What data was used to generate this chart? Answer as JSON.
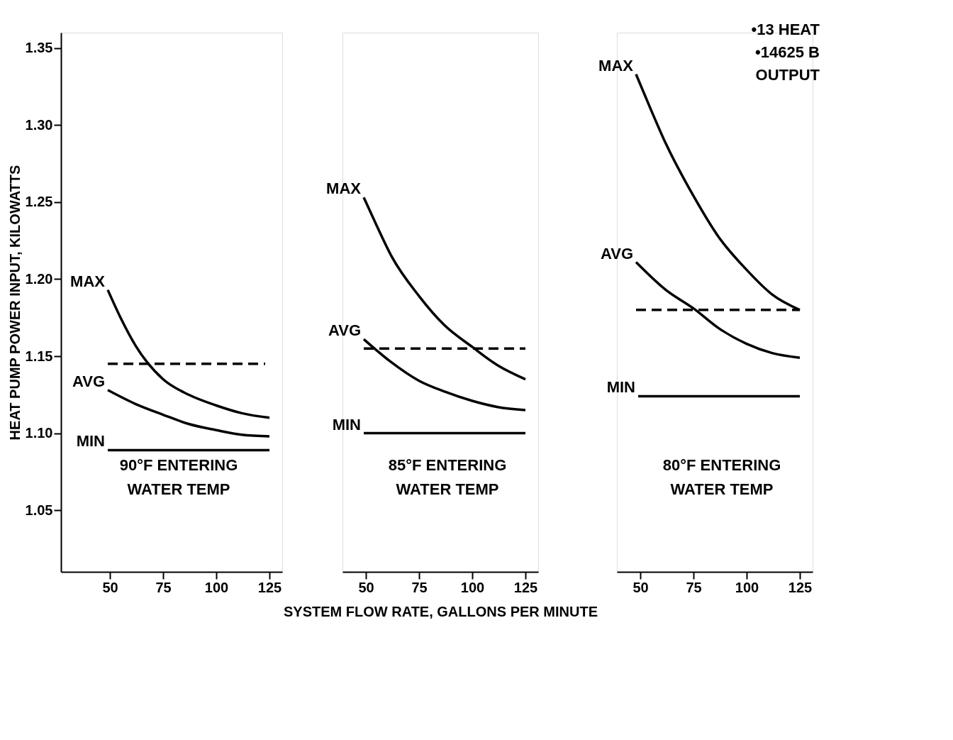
{
  "chart_data": [
    {
      "type": "line",
      "ylabel": "HEAT PUMP POWER INPUT, KILOWATTS",
      "xlim": [
        27,
        131
      ],
      "xticks": [
        50,
        75,
        100,
        125
      ],
      "ylim": [
        1.01,
        1.36
      ],
      "yticks": [
        1.05,
        {
          "value": 1.1,
          "label": "1.10"
        },
        1.15,
        {
          "value": 1.2,
          "label": "1.20"
        },
        1.25,
        {
          "value": 1.3,
          "label": "1.30"
        },
        1.35
      ],
      "grid": false,
      "legend": "left",
      "annotations": [
        "90°F ENTERING",
        "WATER TEMP"
      ],
      "series": [
        {
          "name": "MAX",
          "color": "#000000",
          "x": [
            49,
            55,
            62,
            75,
            87,
            100,
            112,
            125
          ],
          "values": [
            1.193,
            1.175,
            1.157,
            1.135,
            1.125,
            1.118,
            1.113,
            1.11
          ]
        },
        {
          "name": "AVG",
          "color": "#000000",
          "x": [
            49,
            62,
            75,
            87,
            100,
            112,
            125
          ],
          "values": [
            1.128,
            1.119,
            1.112,
            1.106,
            1.102,
            1.099,
            1.098
          ]
        },
        {
          "name": "MIN",
          "color": "#000000",
          "x": [
            49,
            125
          ],
          "values": [
            1.089,
            1.089
          ]
        },
        {
          "color": "#000000",
          "line_style": "dashed",
          "x": [
            49,
            123
          ],
          "values": [
            1.145,
            1.145
          ]
        }
      ]
    },
    {
      "type": "line",
      "xlabel": "SYSTEM FLOW RATE, GALLONS PER MINUTE",
      "xlim": [
        39,
        131
      ],
      "xticks": [
        50,
        75,
        100,
        125
      ],
      "ylim": [
        1.01,
        1.36
      ],
      "tick_labels": "x",
      "grid": false,
      "legend": "left",
      "annotations": [
        "85°F ENTERING",
        "WATER TEMP"
      ],
      "series": [
        {
          "name": "MAX",
          "color": "#000000",
          "x": [
            49,
            55,
            62,
            75,
            87,
            100,
            112,
            125
          ],
          "values": [
            1.253,
            1.235,
            1.215,
            1.189,
            1.17,
            1.156,
            1.144,
            1.135
          ]
        },
        {
          "name": "AVG",
          "color": "#000000",
          "x": [
            49,
            62,
            75,
            87,
            100,
            112,
            125
          ],
          "values": [
            1.161,
            1.146,
            1.134,
            1.127,
            1.121,
            1.117,
            1.115
          ]
        },
        {
          "name": "MIN",
          "color": "#000000",
          "x": [
            49,
            125
          ],
          "values": [
            1.1,
            1.1
          ]
        },
        {
          "color": "#000000",
          "line_style": "dashed",
          "x": [
            49,
            125
          ],
          "values": [
            1.155,
            1.155
          ]
        }
      ]
    },
    {
      "type": "line",
      "xlim": [
        39,
        131
      ],
      "xticks": [
        50,
        75,
        100,
        125
      ],
      "ylim": [
        1.01,
        1.36
      ],
      "tick_labels": "x",
      "grid": false,
      "legend": "left",
      "annotations": [
        "80°F ENTERING",
        "WATER TEMP",
        "•13 HEAT",
        "•14625 B",
        "OUTPUT"
      ],
      "series": [
        {
          "name": "MAX",
          "color": "#000000",
          "x": [
            48,
            55,
            62,
            75,
            87,
            100,
            112,
            125
          ],
          "values": [
            1.333,
            1.31,
            1.288,
            1.254,
            1.227,
            1.206,
            1.19,
            1.18
          ]
        },
        {
          "name": "AVG",
          "color": "#000000",
          "x": [
            48,
            62,
            75,
            87,
            100,
            112,
            125
          ],
          "values": [
            1.211,
            1.193,
            1.181,
            1.168,
            1.158,
            1.152,
            1.149
          ]
        },
        {
          "name": "MIN",
          "color": "#000000",
          "x": [
            49,
            125
          ],
          "values": [
            1.124,
            1.124
          ]
        },
        {
          "color": "#000000",
          "line_style": "dashed",
          "x": [
            48,
            125
          ],
          "values": [
            1.18,
            1.18
          ]
        }
      ]
    }
  ]
}
